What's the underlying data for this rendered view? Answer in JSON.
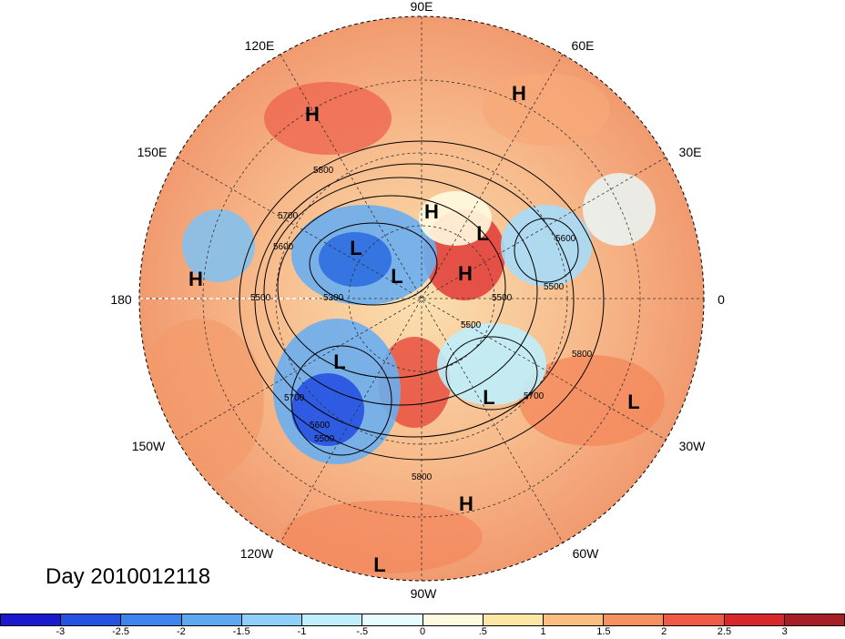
{
  "title": "Day 2010012118",
  "map": {
    "projection": "polar stereographic",
    "longitude_labels": {
      "top": "90E",
      "top_left": "120E",
      "top_right": "60E",
      "upper_left": "150E",
      "upper_right": "30E",
      "left": "180",
      "right": "0",
      "lower_left": "150W",
      "lower_right": "30W",
      "bottom_left": "120W",
      "bottom_right": "60W",
      "bottom": "90W"
    },
    "pressure_centers": [
      {
        "label": "H"
      },
      {
        "label": "H"
      },
      {
        "label": "H"
      },
      {
        "label": "H"
      },
      {
        "label": "H"
      },
      {
        "label": "H"
      },
      {
        "label": "L"
      },
      {
        "label": "L"
      },
      {
        "label": "L"
      },
      {
        "label": "L"
      },
      {
        "label": "L"
      },
      {
        "label": "L"
      },
      {
        "label": "L"
      }
    ],
    "contour_labels": [
      "5800",
      "5700",
      "5600",
      "5500",
      "5300",
      "5500",
      "5500",
      "5800",
      "5700",
      "5700",
      "5600",
      "5800",
      "5500",
      "5600",
      "5500"
    ]
  },
  "colorbar": {
    "colors": [
      "#1a1acc",
      "#2652e0",
      "#3d85ec",
      "#5ea8f2",
      "#8fd0fa",
      "#bfeefc",
      "#e8fbff",
      "#fffbe0",
      "#fde7a5",
      "#fbbd80",
      "#f6905e",
      "#ef5a46",
      "#d8282c",
      "#a51d25"
    ],
    "tick_labels": [
      "-3",
      "-2.5",
      "-2",
      "-1.5",
      "-1",
      "-.5",
      "0",
      ".5",
      "1",
      "1.5",
      "2",
      "2.5",
      "3"
    ]
  }
}
